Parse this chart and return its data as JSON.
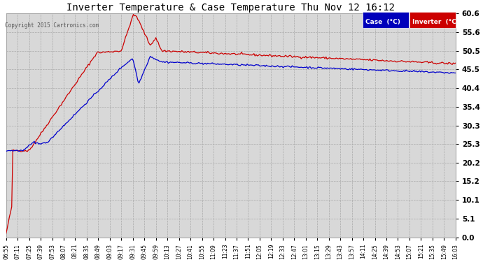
{
  "title": "Inverter Temperature & Case Temperature Thu Nov 12 16:12",
  "copyright": "Copyright 2015 Cartronics.com",
  "ylim": [
    0.0,
    60.6
  ],
  "yticks": [
    0.0,
    5.1,
    10.1,
    15.2,
    20.2,
    25.3,
    30.3,
    35.4,
    40.4,
    45.5,
    50.5,
    55.6,
    60.6
  ],
  "legend_case_label": "Case  (°C)",
  "legend_inverter_label": "Inverter  (°C)",
  "case_color": "#0000cc",
  "inverter_color": "#cc0000",
  "background_color": "#ffffff",
  "plot_bg_color": "#d8d8d8",
  "grid_color": "#aaaaaa",
  "title_color": "#000000",
  "tick_color": "#000000",
  "copyright_color": "#555555",
  "legend_case_bg": "#0000bb",
  "legend_inverter_bg": "#cc0000",
  "time_labels": [
    "06:55",
    "07:11",
    "07:25",
    "07:39",
    "07:53",
    "08:07",
    "08:21",
    "08:35",
    "08:49",
    "09:03",
    "09:17",
    "09:31",
    "09:45",
    "09:59",
    "10:13",
    "10:27",
    "10:41",
    "10:55",
    "11:09",
    "11:23",
    "11:37",
    "11:51",
    "12:05",
    "12:19",
    "12:33",
    "12:47",
    "13:01",
    "13:15",
    "13:29",
    "13:43",
    "13:57",
    "14:11",
    "14:25",
    "14:39",
    "14:53",
    "15:07",
    "15:21",
    "15:35",
    "15:49",
    "16:03"
  ]
}
